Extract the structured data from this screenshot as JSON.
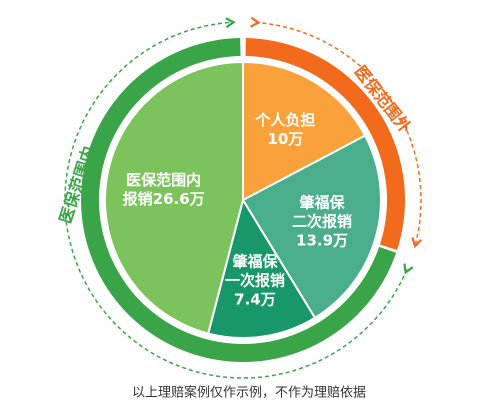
{
  "chart_data": {
    "type": "pie",
    "categories": [
      [
        "个人负担"
      ],
      [
        "肇福保",
        "二次报销"
      ],
      [
        "肇福保",
        "一次报销"
      ],
      [
        "医保范围内"
      ]
    ],
    "values": [
      10,
      13.9,
      7.4,
      26.6
    ],
    "value_labels": [
      "10万",
      "13.9万",
      "7.4万",
      "报销26.6万"
    ],
    "colors": [
      "#f9a13a",
      "#4aae8c",
      "#17976a",
      "#7cc35d"
    ],
    "annotations": {
      "inside": "医保范围内",
      "outside": "医保范围外"
    },
    "footnote": "以上理赔案例仅作示例，不作为理赔依据"
  }
}
